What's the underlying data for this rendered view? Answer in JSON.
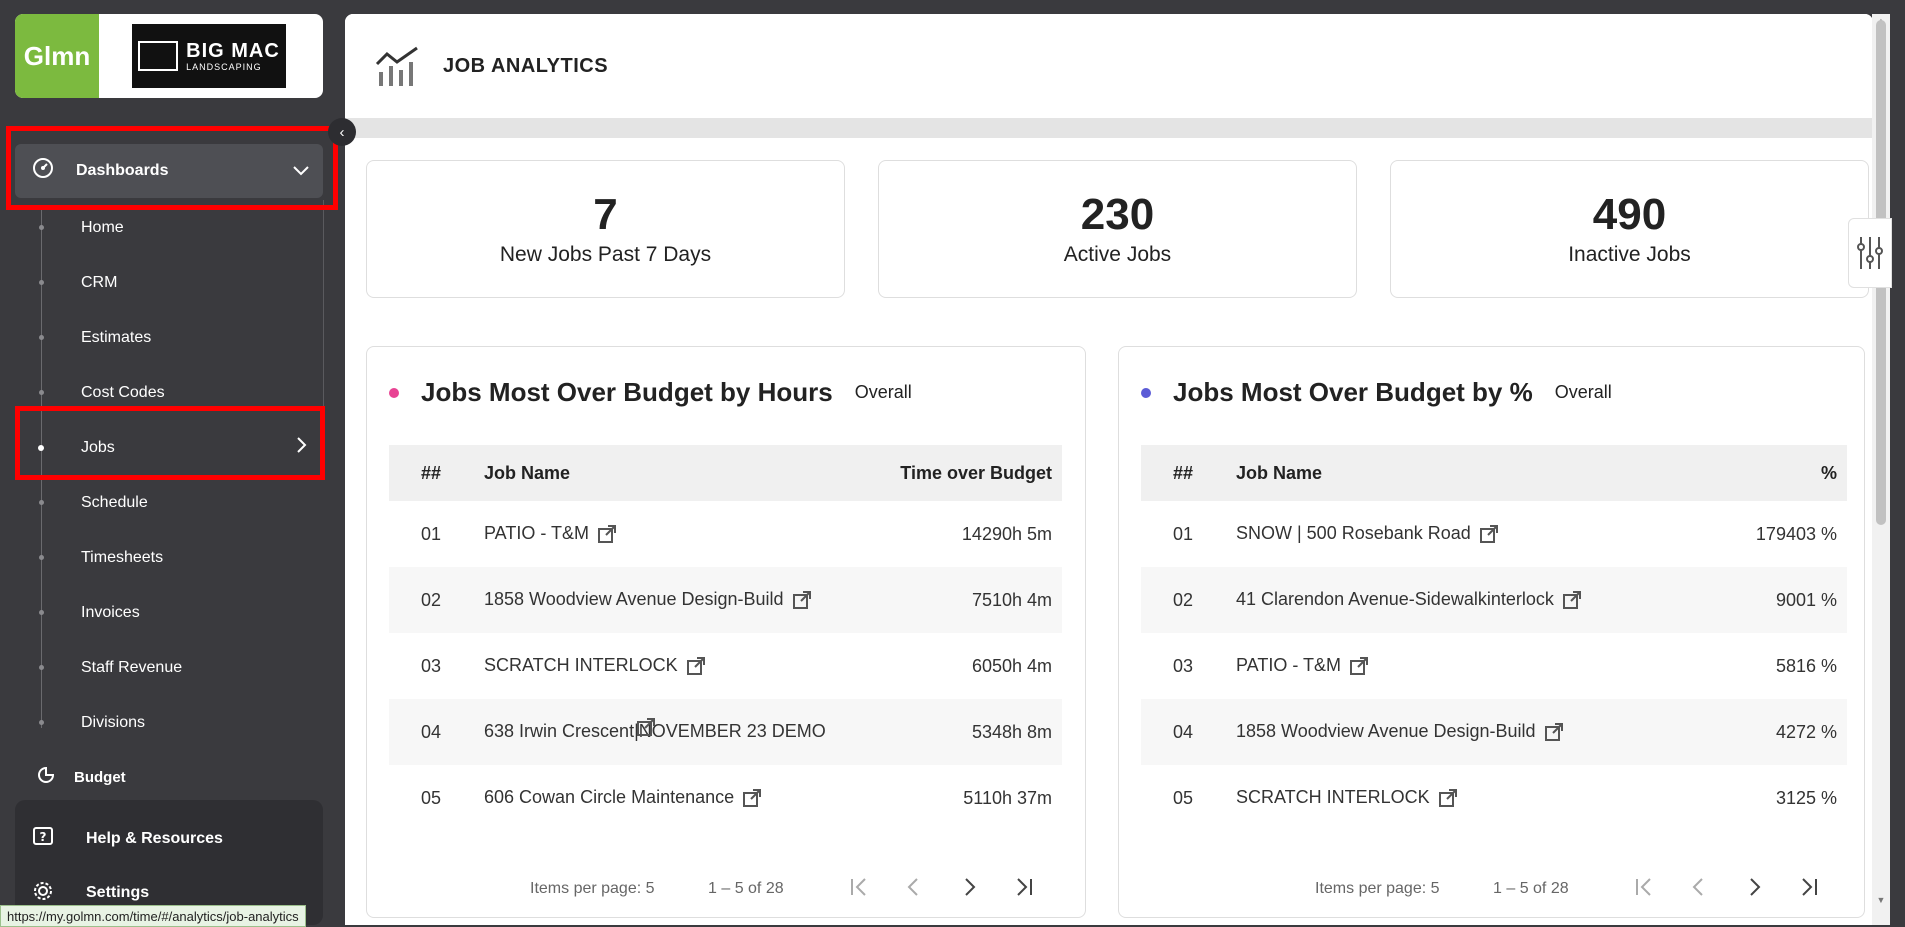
{
  "sidebar": {
    "logo_text": "Glmn",
    "company_logo": {
      "line1": "BIG MAC",
      "line2": "LANDSCAPING"
    },
    "collapse_icon": "chevron-left-icon",
    "dashboards": {
      "label": "Dashboards",
      "icon": "gauge-icon"
    },
    "items": [
      {
        "label": "Home"
      },
      {
        "label": "CRM"
      },
      {
        "label": "Estimates"
      },
      {
        "label": "Cost Codes"
      },
      {
        "label": "Jobs",
        "active": true
      },
      {
        "label": "Schedule"
      },
      {
        "label": "Timesheets"
      },
      {
        "label": "Invoices"
      },
      {
        "label": "Staff Revenue"
      },
      {
        "label": "Divisions"
      }
    ],
    "budget": {
      "label": "Budget"
    },
    "help": {
      "label": "Help & Resources",
      "icon": "help-icon"
    },
    "settings": {
      "label": "Settings",
      "icon": "gear-icon"
    }
  },
  "status_url": "https://my.golmn.com/time/#/analytics/job-analytics",
  "header": {
    "title": "JOB ANALYTICS",
    "icon": "analytics-chart-icon"
  },
  "stats": [
    {
      "value": "7",
      "label": "New Jobs Past 7 Days"
    },
    {
      "value": "230",
      "label": "Active Jobs"
    },
    {
      "value": "490",
      "label": "Inactive Jobs"
    }
  ],
  "hours_table": {
    "title": "Jobs Most Over Budget by Hours",
    "badge": "Overall",
    "dot_color": "#e84393",
    "columns": [
      "##",
      "Job Name",
      "Time over Budget"
    ],
    "rows": [
      {
        "num": "01",
        "name": "PATIO - T&M",
        "value": "14290h 5m"
      },
      {
        "num": "02",
        "name": "1858 Woodview Avenue Design-Build",
        "value": "7510h 4m"
      },
      {
        "num": "03",
        "name": "SCRATCH INTERLOCK",
        "value": "6050h 4m"
      },
      {
        "num": "04",
        "name": "638 Irwin Crescent|NOVEMBER 23 DEMO",
        "value": "5348h 8m"
      },
      {
        "num": "05",
        "name": "606 Cowan Circle Maintenance",
        "value": "5110h 37m"
      }
    ],
    "pager": {
      "items_per_page": "Items per page: 5",
      "range": "1 – 5 of 28"
    }
  },
  "percent_table": {
    "title": "Jobs Most Over Budget by %",
    "badge": "Overall",
    "dot_color": "#5b5bd6",
    "columns": [
      "##",
      "Job Name",
      "%"
    ],
    "rows": [
      {
        "num": "01",
        "name": "SNOW | 500 Rosebank Road",
        "value": "179403 %"
      },
      {
        "num": "02",
        "name": "41 Clarendon Avenue-Sidewalkinterlock",
        "value": "9001 %"
      },
      {
        "num": "03",
        "name": "PATIO - T&M",
        "value": "5816 %"
      },
      {
        "num": "04",
        "name": "1858 Woodview Avenue Design-Build",
        "value": "4272 %"
      },
      {
        "num": "05",
        "name": "SCRATCH INTERLOCK",
        "value": "3125 %"
      }
    ],
    "pager": {
      "items_per_page": "Items per page: 5",
      "range": "1 – 5 of 28"
    }
  },
  "colors": {
    "sidebar_bg": "#3a3a3e",
    "logo_green": "#7cba3f",
    "highlight_red": "#ff0000"
  }
}
